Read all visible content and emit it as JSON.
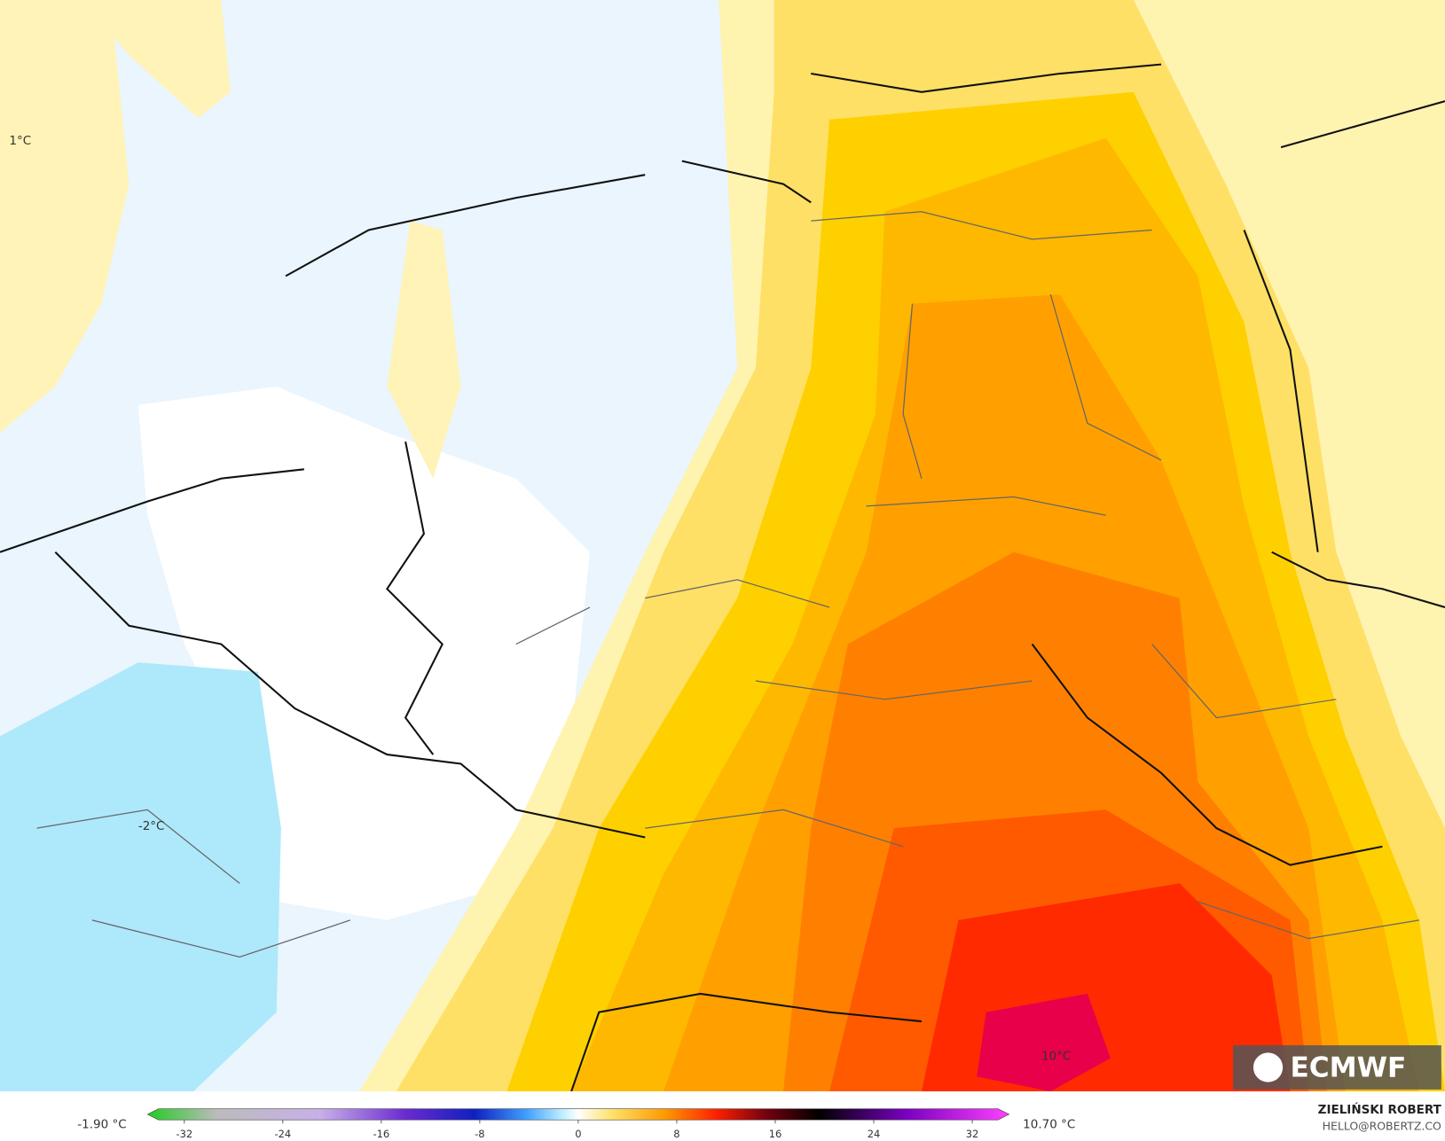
{
  "map": {
    "labels": [
      "1°C",
      "-2°C",
      "10°C"
    ],
    "logo": "ECMWF"
  },
  "colorbar": {
    "min_label": "-1.90 °C",
    "max_label": "10.70 °C",
    "ticks": [
      -32,
      -24,
      -16,
      -8,
      0,
      8,
      16,
      24,
      32
    ]
  },
  "credit": {
    "author": "ZIELIŃSKI ROBERT",
    "contact": "HELLO@ROBERTZ.CO"
  }
}
